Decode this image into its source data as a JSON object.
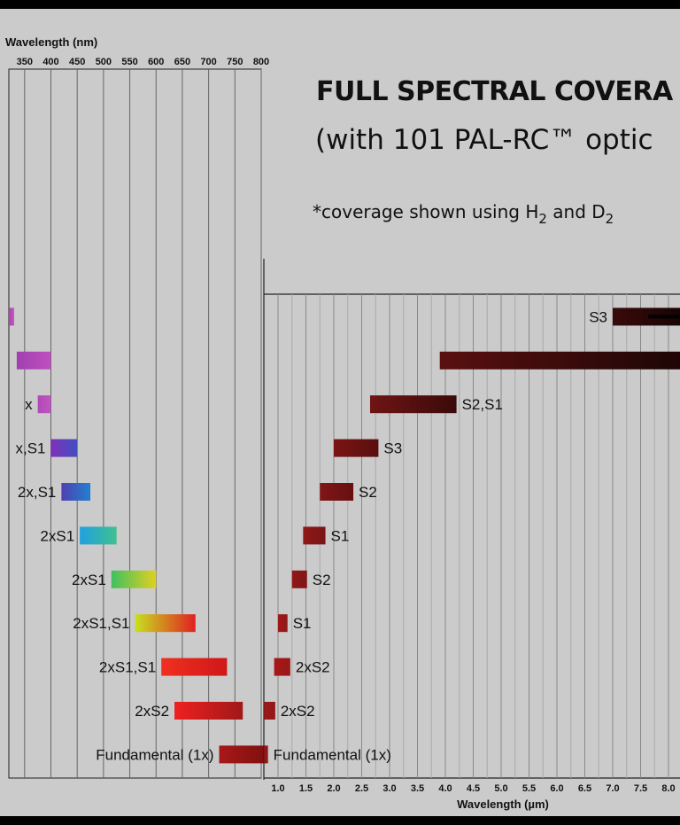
{
  "title": "FULL SPECTRAL COVERA",
  "subtitle": "(with 101 PAL-RC™ optic",
  "note": {
    "prefix": "*coverage shown using H",
    "sub1": "2",
    "mid": " and D",
    "sub2": "2"
  },
  "chart_data": [
    {
      "type": "bar",
      "orientation": "horizontal-range",
      "xlabel": "Wavelength (nm)",
      "x_ticks": [
        "350",
        "400",
        "450",
        "500",
        "550",
        "600",
        "650",
        "700",
        "750",
        "800"
      ],
      "xlim": [
        320,
        800
      ],
      "grid": true,
      "bars": [
        {
          "label": "",
          "lane": 6,
          "start": 320,
          "end": 330,
          "colors": [
            "#b040b0",
            "#c058c0"
          ]
        },
        {
          "label": "",
          "lane": 7,
          "start": 335,
          "end": 400,
          "colors": [
            "#a040b0",
            "#c050c0"
          ]
        },
        {
          "label": "x",
          "lane": 8,
          "start": 375,
          "end": 400,
          "colors": [
            "#b048b8",
            "#c058c0"
          ]
        },
        {
          "label": "x,S1",
          "lane": 9,
          "start": 400,
          "end": 450,
          "colors": [
            "#8030b8",
            "#4050c0"
          ]
        },
        {
          "label": "2x,S1",
          "lane": 10,
          "start": 420,
          "end": 475,
          "colors": [
            "#5040b0",
            "#2080d0"
          ]
        },
        {
          "label": "2xS1",
          "lane": 11,
          "start": 455,
          "end": 525,
          "colors": [
            "#20a0e0",
            "#40c090"
          ]
        },
        {
          "label": "2xS1",
          "lane": 12,
          "start": 515,
          "end": 600,
          "colors": [
            "#40c060",
            "#e0d020"
          ]
        },
        {
          "label": "2xS1,S1",
          "lane": 13,
          "start": 560,
          "end": 675,
          "colors": [
            "#c8e020",
            "#e02020"
          ]
        },
        {
          "label": "2xS1,S1",
          "lane": 14,
          "start": 610,
          "end": 735,
          "colors": [
            "#f03020",
            "#d01818"
          ]
        },
        {
          "label": "2xS2",
          "lane": 15,
          "start": 635,
          "end": 765,
          "colors": [
            "#f02020",
            "#a01818"
          ]
        },
        {
          "label": "Fundamental (1x)",
          "lane": 16,
          "start": 720,
          "end": 810,
          "colors": [
            "#a81818",
            "#801010"
          ]
        }
      ]
    },
    {
      "type": "bar",
      "orientation": "horizontal-range",
      "xlabel": "Wavelength (µm)",
      "x_ticks": [
        "1.0",
        "1.5",
        "2.0",
        "2.5",
        "3.0",
        "3.5",
        "4.0",
        "4.5",
        "5.0",
        "5.5",
        "6.0",
        "6.5",
        "7.0",
        "7.5",
        "8.0"
      ],
      "xlim": [
        0.75,
        8.5
      ],
      "grid": true,
      "bars": [
        {
          "label": "S3",
          "lane": 6,
          "start": 7.0,
          "end": 8.5,
          "colors": [
            "#3a0a0a",
            "#180404"
          ]
        },
        {
          "label": "",
          "lane": 7,
          "start": 3.9,
          "end": 8.5,
          "colors": [
            "#5a1010",
            "#1e0606"
          ]
        },
        {
          "label": "S2,S1",
          "lane": 8,
          "start": 2.65,
          "end": 4.2,
          "colors": [
            "#701414",
            "#3a0a0a"
          ]
        },
        {
          "label": "S3",
          "lane": 9,
          "start": 2.0,
          "end": 2.8,
          "colors": [
            "#7a1414",
            "#5a0e0e"
          ]
        },
        {
          "label": "S2",
          "lane": 10,
          "start": 1.75,
          "end": 2.35,
          "colors": [
            "#801616",
            "#661010"
          ]
        },
        {
          "label": "S1",
          "lane": 11,
          "start": 1.45,
          "end": 1.85,
          "colors": [
            "#901818",
            "#7a1414"
          ]
        },
        {
          "label": "S2",
          "lane": 12,
          "start": 1.25,
          "end": 1.52,
          "colors": [
            "#901818",
            "#801616"
          ]
        },
        {
          "label": "S1",
          "lane": 13,
          "start": 1.0,
          "end": 1.17,
          "colors": [
            "#a01818",
            "#901818"
          ]
        },
        {
          "label": "2xS2",
          "lane": 14,
          "start": 0.93,
          "end": 1.22,
          "colors": [
            "#a81818",
            "#981818"
          ]
        },
        {
          "label": "2xS2",
          "lane": 15,
          "start": 0.75,
          "end": 0.95,
          "colors": [
            "#a01818",
            "#901818"
          ]
        },
        {
          "label": "Fundamental (1x)",
          "lane": 16,
          "start": 0.75,
          "end": 0.82,
          "colors": [
            "#981616",
            "#901414"
          ]
        }
      ]
    }
  ]
}
